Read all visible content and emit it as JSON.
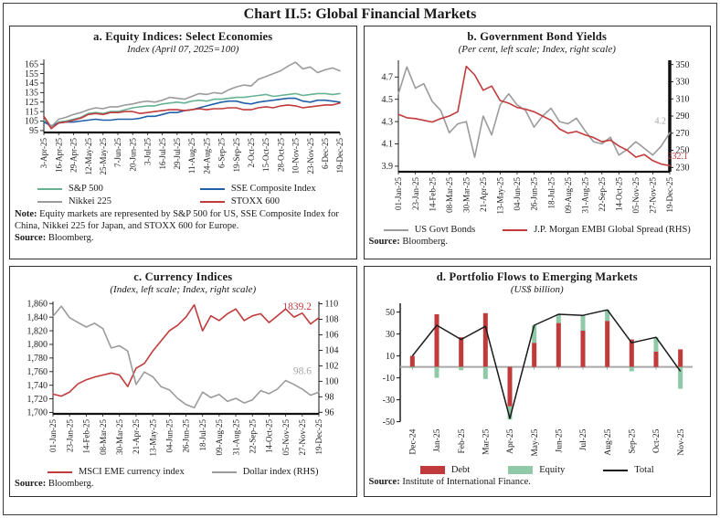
{
  "page_title": "Chart II.5: Global Financial Markets",
  "colors": {
    "green": "#66b292",
    "blue": "#2060a8",
    "gray": "#9b9b9b",
    "red": "#c13b3d",
    "bar_red": "#c0393b",
    "bar_green": "#8fc9a8",
    "black_line": "#1a1a1a",
    "zero_line": "#a9a9a9"
  },
  "chart_data": [
    {
      "id": "a",
      "type": "line",
      "title": "a. Equity Indices: Select Economies",
      "subtitle": "Index (April 07, 2025=100)",
      "x_tick_labels": [
        "3-Apr-25",
        "16-Apr-25",
        "29-Apr-25",
        "12-May-25",
        "25-May-25",
        "7-Jun-25",
        "20-Jun-25",
        "3-Jul-25",
        "16-Jul-25",
        "29-Jul-25",
        "11-Aug-25",
        "24-Aug-25",
        "6-Sep-25",
        "19-Sep-25",
        "2-Oct-25",
        "15-Oct-25",
        "28-Oct-25",
        "10-Nov-25",
        "23-Nov-25",
        "6-Dec-25",
        "19-Dec-25"
      ],
      "left_axis": {
        "min": 93,
        "max": 170,
        "ticks": [
          95,
          105,
          115,
          125,
          135,
          145,
          155,
          165
        ]
      },
      "series": [
        {
          "name": "S&P 500",
          "color": "#66b292",
          "axis": "left",
          "values": [
            106,
            98,
            104,
            105,
            107,
            109,
            113,
            114,
            113,
            115,
            115,
            117,
            119,
            120,
            121,
            121,
            123,
            124,
            125,
            124,
            126,
            127,
            126,
            128,
            128,
            129,
            130,
            130,
            131,
            132,
            133,
            131,
            132,
            133,
            134,
            132,
            133,
            134,
            134,
            133,
            134
          ]
        },
        {
          "name": "SSE Composite Index",
          "color": "#2060a8",
          "axis": "left",
          "values": [
            104,
            100,
            103,
            104,
            104,
            105,
            106,
            107,
            106,
            106,
            107,
            107,
            107,
            108,
            110,
            110,
            112,
            114,
            114,
            116,
            117,
            119,
            121,
            123,
            125,
            126,
            126,
            124,
            123,
            125,
            126,
            127,
            128,
            129,
            129,
            126,
            125,
            127,
            127,
            126,
            125
          ]
        },
        {
          "name": "Nikkei 225",
          "color": "#9b9b9b",
          "axis": "left",
          "values": [
            110,
            99,
            107,
            109,
            112,
            114,
            117,
            119,
            118,
            120,
            120,
            122,
            123,
            125,
            126,
            125,
            127,
            130,
            129,
            128,
            131,
            134,
            133,
            135,
            134,
            138,
            141,
            143,
            142,
            149,
            152,
            155,
            158,
            163,
            167,
            160,
            162,
            156,
            159,
            161,
            158
          ]
        },
        {
          "name": "STOXX 600",
          "color": "#c13b3d",
          "axis": "left",
          "values": [
            110,
            97,
            103,
            104,
            106,
            108,
            112,
            113,
            112,
            114,
            114,
            115,
            115,
            113,
            114,
            115,
            116,
            117,
            117,
            116,
            117,
            118,
            117,
            118,
            118,
            119,
            119,
            117,
            117,
            119,
            120,
            119,
            121,
            122,
            121,
            119,
            120,
            121,
            122,
            122,
            124
          ]
        }
      ],
      "note_label": "Note:",
      "note_text": "Equity markets are represented by S&P 500 for US, SSE Composite Index for China, Nikkei 225 for Japan, and STOXX 600 for Europe.",
      "source_label": "Source:",
      "source_text": "Bloomberg."
    },
    {
      "id": "b",
      "type": "line",
      "title": "b. Government Bond Yields",
      "subtitle": "(Per cent, left scale; Index, right scale)",
      "x_tick_labels": [
        "01-Jan-25",
        "23-Jan-25",
        "14-Feb-25",
        "08-Mar-25",
        "30-Mar-25",
        "21-Apr-25",
        "13-May-25",
        "04-Jun-25",
        "26-Jun-25",
        "18-Jul-25",
        "09-Aug-25",
        "31-Aug-25",
        "22-Sep-25",
        "14-Oct-25",
        "05-Nov-25",
        "27-Nov-25",
        "19-Dec-25"
      ],
      "left_axis": {
        "min": 3.85,
        "max": 4.85,
        "ticks": [
          3.9,
          4.1,
          4.3,
          4.5,
          4.7
        ],
        "labels": [
          "3.9",
          "4.1",
          "4.3",
          "4.5",
          "4.7"
        ]
      },
      "right_axis": {
        "min": 225,
        "max": 355,
        "ticks": [
          230,
          250,
          270,
          290,
          310,
          330,
          350
        ]
      },
      "series": [
        {
          "name": "US Govt Bonds",
          "color": "#9b9b9b",
          "axis": "left",
          "values": [
            4.55,
            4.79,
            4.6,
            4.64,
            4.48,
            4.4,
            4.2,
            4.28,
            4.3,
            3.98,
            4.35,
            4.18,
            4.45,
            4.55,
            4.45,
            4.4,
            4.25,
            4.35,
            4.42,
            4.3,
            4.28,
            4.33,
            4.22,
            4.12,
            4.1,
            4.16,
            4.0,
            4.05,
            4.12,
            4.06,
            4.0,
            4.08,
            4.2
          ]
        },
        {
          "name": "J.P. Morgan EMBI Global Spread (RHS)",
          "color": "#c13b3d",
          "axis": "right",
          "values": [
            292,
            288,
            287,
            285,
            283,
            287,
            290,
            295,
            348,
            338,
            320,
            325,
            308,
            305,
            300,
            298,
            295,
            290,
            285,
            275,
            270,
            272,
            268,
            265,
            260,
            262,
            255,
            250,
            242,
            245,
            238,
            234,
            232.1
          ]
        }
      ],
      "end_labels": [
        {
          "text": "4.2",
          "color": "#a6a6a6",
          "axis": "left",
          "value": 4.28,
          "fx": 1,
          "dx": -4,
          "size": 10
        },
        {
          "text": "232.1",
          "color": "#c13b3d",
          "axis": "right",
          "value": 240,
          "fx": 1,
          "dx": 20,
          "size": 10
        }
      ],
      "source_label": "Source:",
      "source_text": "Bloomberg."
    },
    {
      "id": "c",
      "type": "line",
      "title": "c. Currency Indices",
      "subtitle": "(Index, left scale; Index, right scale)",
      "x_tick_labels": [
        "01-Jan-25",
        "23-Jan-25",
        "14-Feb-25",
        "08-Mar-25",
        "30-Mar-25",
        "21-Apr-25",
        "13-May-25",
        "04-Jun-25",
        "26-Jun-25",
        "18-Jul-25",
        "09-Aug-25",
        "31-Aug-25",
        "22-Sep-25",
        "14-Oct-25",
        "05-Nov-25",
        "27-Nov-25",
        "19-Dec-25"
      ],
      "left_axis": {
        "min": 1698,
        "max": 1863,
        "ticks": [
          1700,
          1720,
          1740,
          1760,
          1780,
          1800,
          1820,
          1840,
          1860
        ],
        "labels": [
          "1,700",
          "1,720",
          "1,740",
          "1,760",
          "1,780",
          "1,800",
          "1,820",
          "1,840",
          "1,860"
        ]
      },
      "right_axis": {
        "min": 95.8,
        "max": 110.3,
        "ticks": [
          96,
          98,
          100,
          102,
          104,
          106,
          108,
          110
        ]
      },
      "series": [
        {
          "name": "MSCI EME currency index",
          "color": "#c13b3d",
          "axis": "left",
          "values": [
            1727,
            1724,
            1730,
            1742,
            1748,
            1752,
            1755,
            1758,
            1755,
            1738,
            1765,
            1772,
            1790,
            1805,
            1820,
            1828,
            1840,
            1858,
            1820,
            1842,
            1835,
            1845,
            1852,
            1835,
            1842,
            1845,
            1832,
            1842,
            1852,
            1840,
            1846,
            1830,
            1839.2
          ]
        },
        {
          "name": "Dollar index (RHS)",
          "color": "#9b9b9b",
          "axis": "right",
          "values": [
            108.4,
            109.7,
            108.2,
            107.6,
            107.0,
            107.5,
            106.8,
            104.3,
            104.6,
            103.9,
            99.6,
            101.2,
            100.6,
            99.3,
            98.9,
            97.8,
            97.0,
            96.6,
            98.6,
            97.9,
            98.3,
            97.4,
            97.8,
            97.2,
            97.6,
            98.8,
            98.4,
            99.0,
            100.1,
            99.6,
            99.0,
            98.2,
            98.6
          ]
        }
      ],
      "end_labels": [
        {
          "text": "1839.2",
          "color": "#c13b3d",
          "axis": "left",
          "value": 1851,
          "fx": 1,
          "dx": -8,
          "size": 11.5
        },
        {
          "text": "98.6",
          "color": "#a6a6a6",
          "axis": "right",
          "value": 100.9,
          "fx": 1,
          "dx": -8,
          "size": 11.5
        }
      ],
      "source_label": "Source:",
      "source_text": "Bloomberg."
    },
    {
      "id": "d",
      "type": "bar+line",
      "title": "d. Portfolio Flows to Emerging Markets",
      "subtitle": "(US$ billion)",
      "categories": [
        "Dec-24",
        "Jan-25",
        "Feb-25",
        "Mar-25",
        "Apr-25",
        "May-25",
        "Jun-25",
        "Jul-25",
        "Aug-25",
        "Sep-25",
        "Oct-25",
        "Nov-25"
      ],
      "left_axis": {
        "min": -52,
        "max": 58,
        "ticks": [
          50,
          30,
          10,
          -10,
          -30,
          -50
        ]
      },
      "series": [
        {
          "name": "Debt",
          "type": "bar",
          "color": "#c0393b",
          "values": [
            10,
            48,
            27,
            49,
            -36,
            22,
            40,
            33,
            42,
            25,
            14,
            16
          ]
        },
        {
          "name": "Equity",
          "type": "bar",
          "color": "#8fc9a8",
          "values": [
            -1,
            -10,
            -3,
            -11,
            -12,
            16,
            8,
            14,
            10,
            -4,
            13,
            -20
          ]
        },
        {
          "name": "Total",
          "type": "line",
          "color": "#1a1a1a",
          "values": [
            10,
            38,
            25,
            37,
            -47,
            38,
            48,
            47,
            52,
            22,
            27,
            -4
          ]
        }
      ],
      "source_label": "Source:",
      "source_text": "Institute of International Finance."
    }
  ]
}
